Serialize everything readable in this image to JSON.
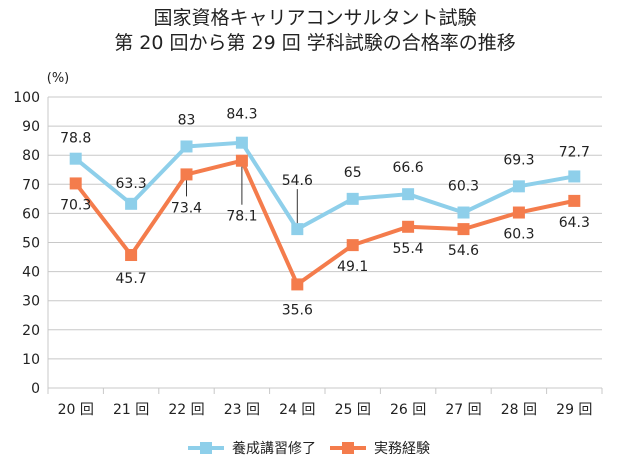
{
  "chart_data": {
    "type": "line",
    "title_lines": [
      "国家資格キャリアコンサルタント試験",
      "第 20 回から第 29 回 学科試験の合格率の推移"
    ],
    "ylabel": "(%)",
    "xlabel": "",
    "categories": [
      "20 回",
      "21 回",
      "22 回",
      "23 回",
      "24 回",
      "25 回",
      "26 回",
      "27 回",
      "28 回",
      "29 回"
    ],
    "ylim": [
      0,
      100
    ],
    "yticks": [
      0,
      10,
      20,
      30,
      40,
      50,
      60,
      70,
      80,
      90,
      100
    ],
    "grid": true,
    "legend_position": "bottom",
    "series": [
      {
        "name": "養成講習修了",
        "color": "#8ecfea",
        "values": [
          78.8,
          63.3,
          83,
          84.3,
          54.6,
          65,
          66.6,
          60.3,
          69.3,
          72.7
        ],
        "labels": [
          "78.8",
          "63.3",
          "83",
          "84.3",
          "54.6",
          "65",
          "66.6",
          "60.3",
          "69.3",
          "72.7"
        ]
      },
      {
        "name": "実務経験",
        "color": "#f47c4c",
        "values": [
          70.3,
          45.7,
          73.4,
          78.1,
          35.6,
          49.1,
          55.4,
          54.6,
          60.3,
          64.3
        ],
        "labels": [
          "70.3",
          "45.7",
          "73.4",
          "78.1",
          "35.6",
          "49.1",
          "55.4",
          "54.6",
          "60.3",
          "64.3"
        ]
      }
    ]
  }
}
